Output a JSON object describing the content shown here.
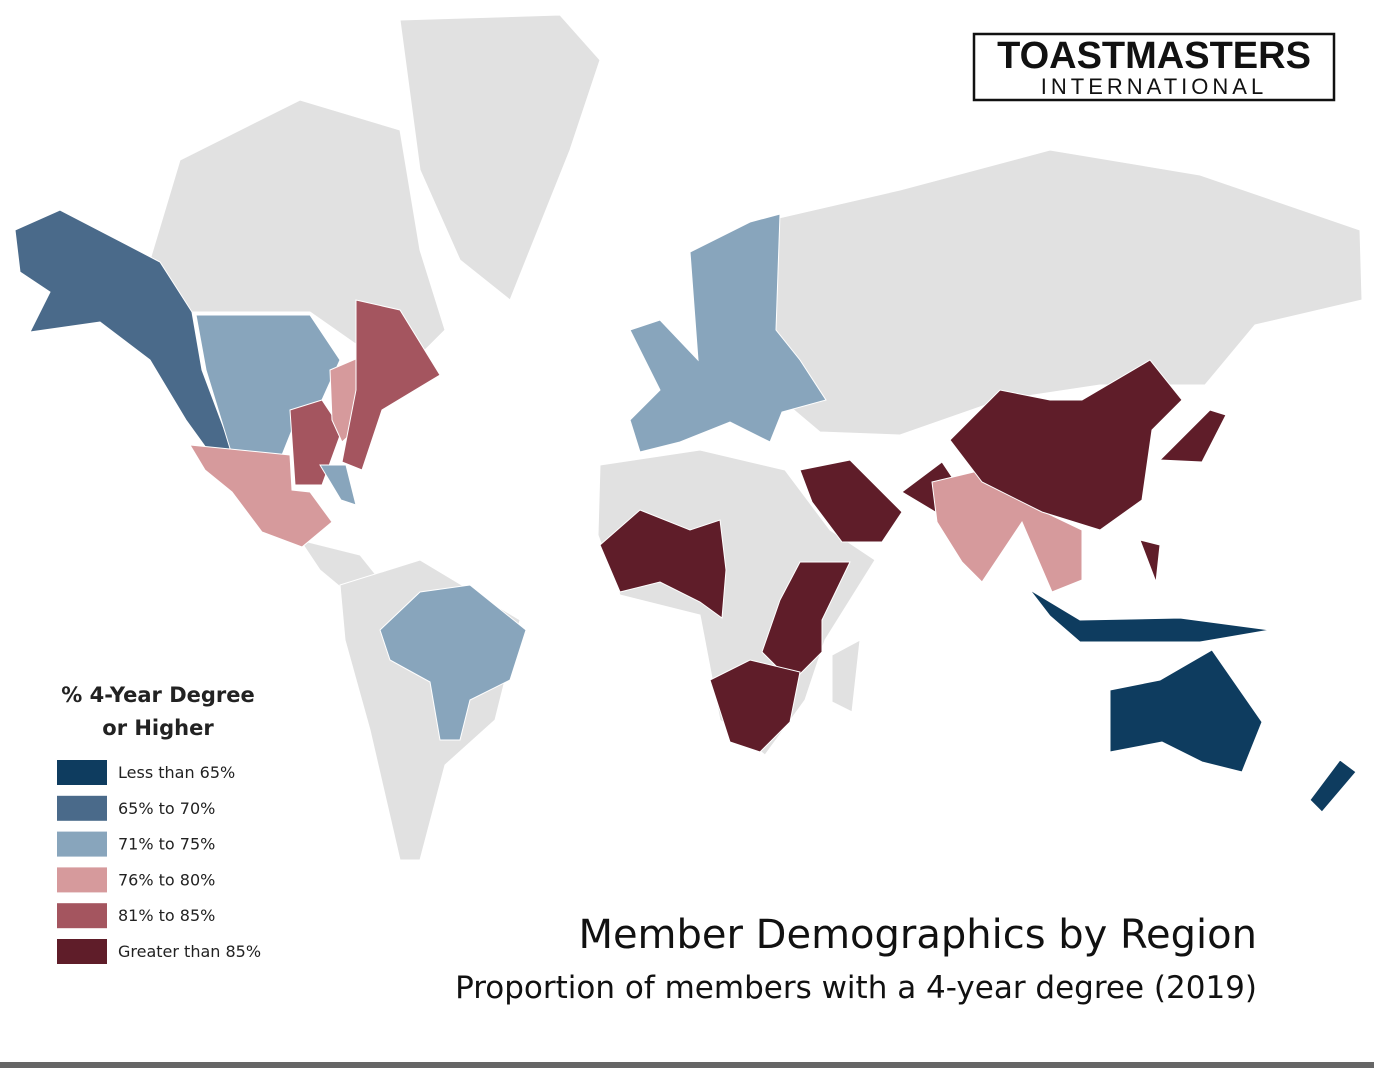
{
  "logo": {
    "name": "TOASTMASTERS",
    "subtitle": "INTERNATIONAL"
  },
  "legend": {
    "title": [
      "% 4-Year Degree",
      "or Higher"
    ],
    "items": [
      {
        "label": "Less than 65%",
        "color": "#0e3c5f"
      },
      {
        "label": "65% to 70%",
        "color": "#4a6a8a"
      },
      {
        "label": "71% to 75%",
        "color": "#88a5bc"
      },
      {
        "label": "76% to 80%",
        "color": "#d69a9c"
      },
      {
        "label": "81% to 85%",
        "color": "#a4555f"
      },
      {
        "label": "Greater than 85%",
        "color": "#5f1d29"
      }
    ]
  },
  "title": "Member Demographics by Region",
  "subtitle": "Proportion of members with a 4-year degree (2019)"
}
